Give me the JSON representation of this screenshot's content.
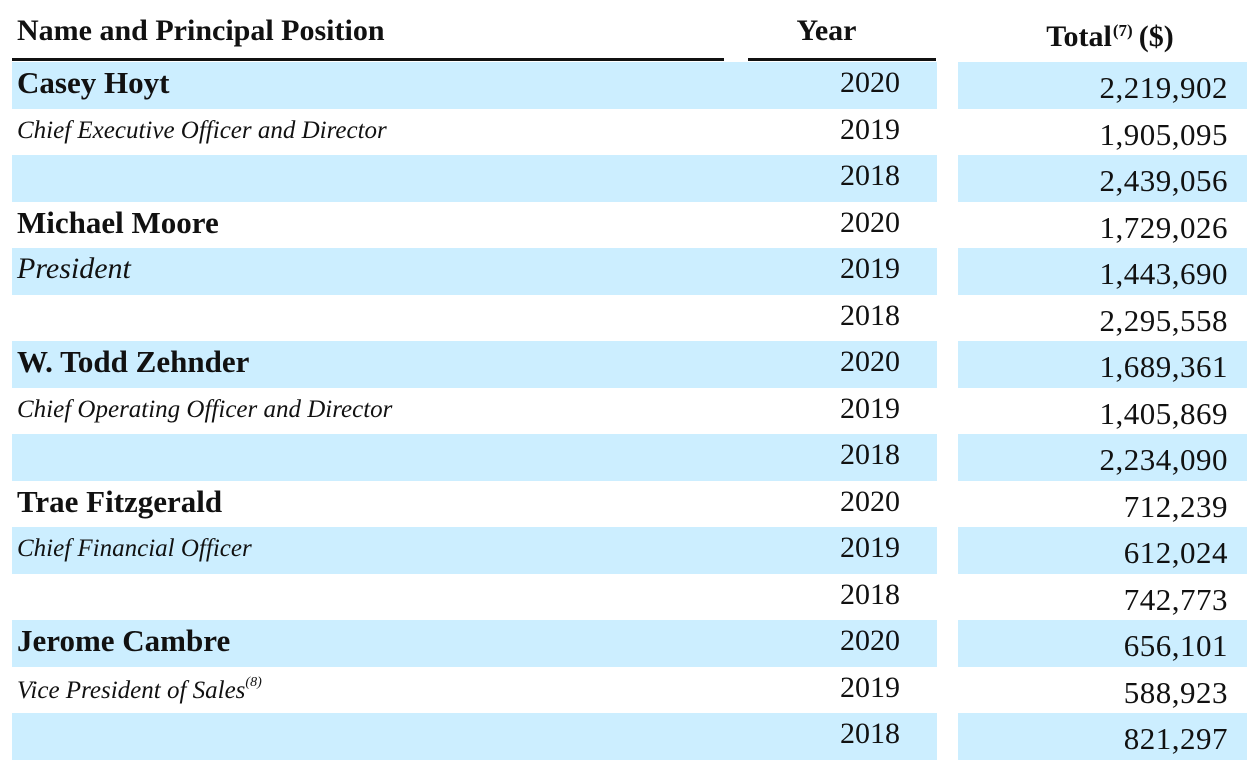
{
  "header": {
    "name_position": "Name and Principal Position",
    "year": "Year",
    "total": "Total",
    "total_note": "(7)",
    "total_unit": "($)"
  },
  "rows": [
    {
      "label": "Casey Hoyt",
      "type": "name",
      "year": "2020",
      "total": "2,219,902",
      "shaded": true
    },
    {
      "label": "Chief Executive Officer and Director",
      "type": "title",
      "year": "2019",
      "total": "1,905,095",
      "shaded": false
    },
    {
      "label": "",
      "type": "blank",
      "year": "2018",
      "total": "2,439,056",
      "shaded": true
    },
    {
      "label": "Michael Moore",
      "type": "name",
      "year": "2020",
      "total": "1,729,026",
      "shaded": false
    },
    {
      "label": "President",
      "type": "title-large",
      "year": "2019",
      "total": "1,443,690",
      "shaded": true
    },
    {
      "label": "",
      "type": "blank",
      "year": "2018",
      "total": "2,295,558",
      "shaded": false
    },
    {
      "label": "W. Todd Zehnder",
      "type": "name",
      "year": "2020",
      "total": "1,689,361",
      "shaded": true
    },
    {
      "label": "Chief Operating Officer and Director",
      "type": "title",
      "year": "2019",
      "total": "1,405,869",
      "shaded": false
    },
    {
      "label": "",
      "type": "blank",
      "year": "2018",
      "total": "2,234,090",
      "shaded": true
    },
    {
      "label": "Trae Fitzgerald",
      "type": "name",
      "year": "2020",
      "total": "712,239",
      "shaded": false
    },
    {
      "label": "Chief Financial Officer",
      "type": "title",
      "year": "2019",
      "total": "612,024",
      "shaded": true
    },
    {
      "label": "",
      "type": "blank",
      "year": "2018",
      "total": "742,773",
      "shaded": false
    },
    {
      "label": "Jerome Cambre",
      "type": "name",
      "year": "2020",
      "total": "656,101",
      "shaded": true
    },
    {
      "label": "Vice President of Sales",
      "label_note": "(8)",
      "type": "title",
      "year": "2019",
      "total": "588,923",
      "shaded": false
    },
    {
      "label": "",
      "type": "blank",
      "year": "2018",
      "total": "821,297",
      "shaded": true
    }
  ],
  "colors": {
    "band": "#cceeff",
    "text": "#111111",
    "rule": "#111111"
  }
}
